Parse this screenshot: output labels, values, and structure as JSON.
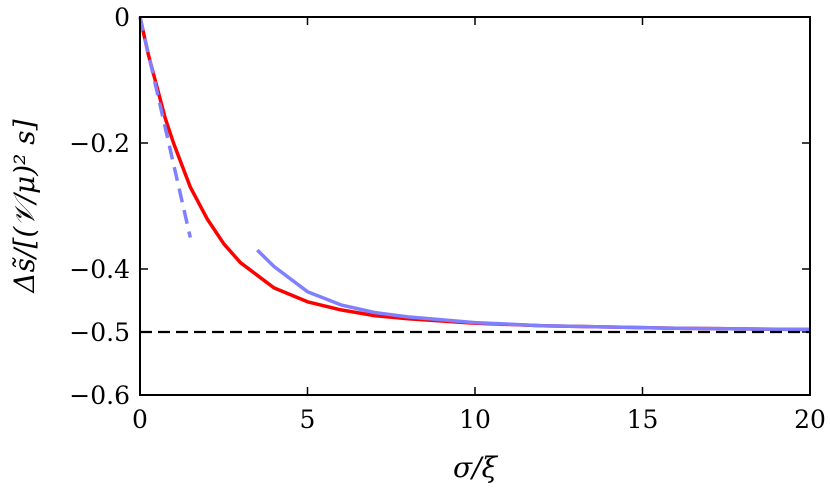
{
  "chart_data": {
    "type": "line",
    "xlabel": "σ/ξ",
    "ylabel": "Δs̃/[(𝒱/μ)² s]",
    "xlim": [
      0,
      20
    ],
    "ylim": [
      -0.6,
      0
    ],
    "x_ticks": [
      0,
      5,
      10,
      15,
      20
    ],
    "x_tick_labels": [
      "0",
      "5",
      "10",
      "15",
      "20"
    ],
    "y_ticks": [
      0,
      -0.2,
      -0.4,
      -0.5,
      -0.6
    ],
    "y_tick_labels": [
      "0",
      "−0.2",
      "−0.4",
      "−0.5",
      "−0.6"
    ],
    "grid": false,
    "legend": "none",
    "series": [
      {
        "style": "solid",
        "color": "#ff0000",
        "x": [
          0,
          0.25,
          0.5,
          0.75,
          1,
          1.5,
          2,
          2.5,
          3,
          3.5,
          4,
          5,
          6,
          7,
          8,
          10,
          12,
          14,
          16,
          18,
          20
        ],
        "y": [
          0,
          -0.06,
          -0.11,
          -0.16,
          -0.2,
          -0.27,
          -0.32,
          -0.36,
          -0.39,
          -0.41,
          -0.43,
          -0.452,
          -0.465,
          -0.474,
          -0.479,
          -0.486,
          -0.49,
          -0.492,
          -0.494,
          -0.495,
          -0.496
        ]
      },
      {
        "style": "dashed",
        "color": "#8080ff",
        "x": [
          0,
          1.5
        ],
        "y": [
          0,
          -0.35
        ]
      },
      {
        "style": "solid",
        "color": "#8080ff",
        "x": [
          3.5,
          4,
          5,
          6,
          7,
          8,
          10,
          12,
          14,
          16,
          18,
          20
        ],
        "y": [
          -0.37,
          -0.396,
          -0.436,
          -0.457,
          -0.469,
          -0.476,
          -0.485,
          -0.49,
          -0.492,
          -0.494,
          -0.495,
          -0.496
        ]
      },
      {
        "style": "dashed",
        "color": "#000000",
        "x": [
          0,
          20
        ],
        "y": [
          -0.5,
          -0.5
        ]
      }
    ]
  }
}
